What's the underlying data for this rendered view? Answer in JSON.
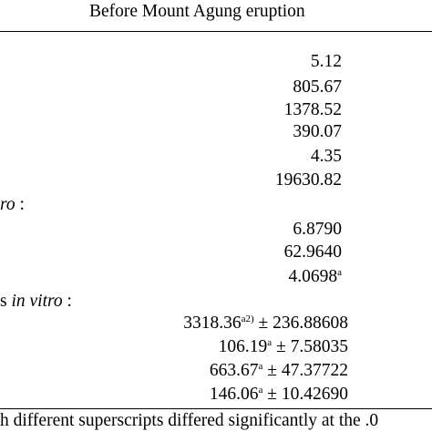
{
  "table": {
    "header": "Before Mount Agung eruption",
    "group1": {
      "values": [
        "5.12",
        "805.67",
        "1378.52",
        "390.07",
        "4.35",
        "19630.82"
      ]
    },
    "group2": {
      "label_fragment": "ro",
      "label_suffix": " :",
      "values": [
        "6.8790",
        "62.9640",
        "4.0698"
      ],
      "last_superscript": "a"
    },
    "group3": {
      "label_prefix": "s ",
      "label_italic": "in vitro",
      "label_suffix": " :",
      "rows": [
        {
          "value": "3318.36",
          "superscript": "a2)",
          "pm": " ± ",
          "sd": "236.88608"
        },
        {
          "value": "106.19",
          "superscript": "a",
          "pm": " ± ",
          "sd": "7.58035"
        },
        {
          "value": "663.67",
          "superscript": "a",
          "pm": " ± ",
          "sd": "47.37722"
        },
        {
          "value": "146.06",
          "superscript": "a",
          "pm": " ± ",
          "sd": "10.42690"
        }
      ]
    },
    "footnote": "h different superscripts differed significantly at the .0"
  }
}
